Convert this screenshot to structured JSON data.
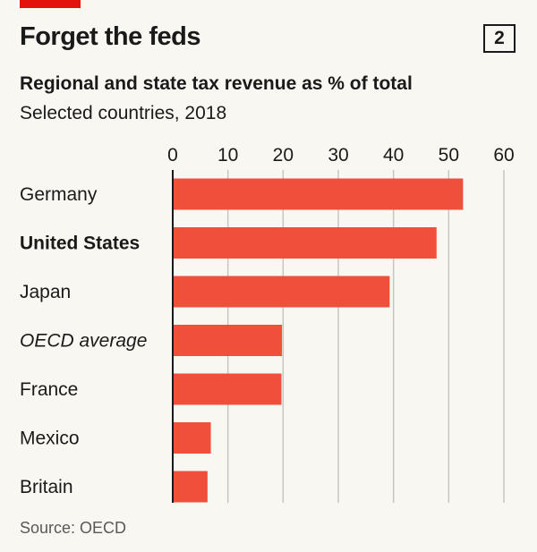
{
  "header": {
    "title": "Forget the feds",
    "chart_number": "2",
    "subtitle": "Regional and state tax revenue as % of total",
    "subsubtitle": "Selected countries, 2018"
  },
  "footer": {
    "source": "Source: OECD"
  },
  "colors": {
    "bar": "#f0503b",
    "accent": "#e3120b",
    "grid": "#c6c6c6",
    "text": "#1a1a1a",
    "source": "#595959"
  },
  "chart_data": {
    "type": "bar",
    "orientation": "horizontal",
    "title": "Forget the feds",
    "subtitle": "Regional and state tax revenue as % of total",
    "categories": [
      "Germany",
      "United States",
      "Japan",
      "OECD average",
      "France",
      "Mexico",
      "Britain"
    ],
    "category_styles": [
      "normal",
      "bold",
      "normal",
      "italic",
      "normal",
      "normal",
      "normal"
    ],
    "values": [
      52.6,
      47.8,
      39.3,
      19.8,
      19.7,
      6.9,
      6.3
    ],
    "xlim": [
      0,
      60
    ],
    "xticks": [
      "0",
      "10",
      "20",
      "30",
      "40",
      "50",
      "60"
    ],
    "tick_values": [
      0,
      10,
      20,
      30,
      40,
      50,
      60
    ],
    "grid": true,
    "legend": "none"
  }
}
